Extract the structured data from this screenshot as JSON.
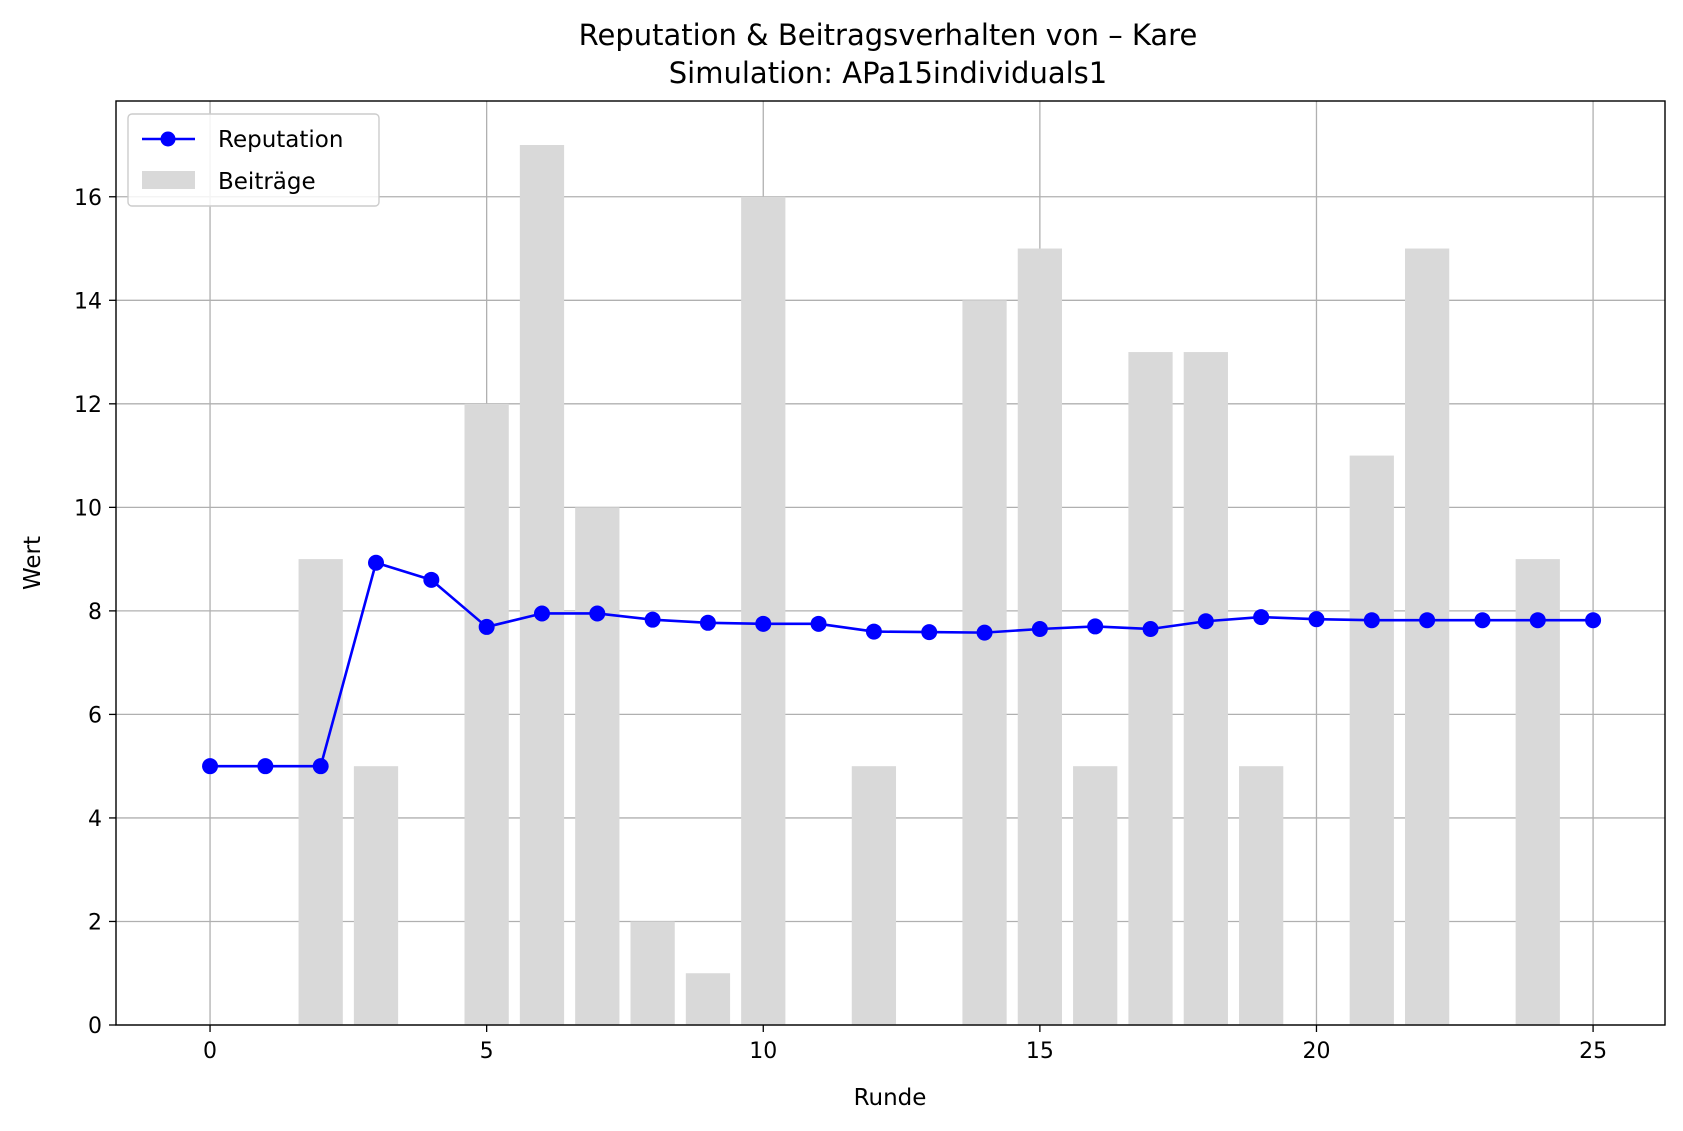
{
  "chart_data": {
    "type": "bar+line",
    "title": "Reputation & Beitragsverhalten von – Kare",
    "subtitle": "Simulation: APa15individuals1",
    "xlabel": "Runde",
    "ylabel": "Wert",
    "xlim": [
      -1.7,
      26.3
    ],
    "ylim": [
      0,
      17.85
    ],
    "xticks": [
      0,
      5,
      10,
      15,
      20,
      25
    ],
    "yticks": [
      0,
      2,
      4,
      6,
      8,
      10,
      12,
      14,
      16
    ],
    "grid": true,
    "legend_position": "top-left",
    "legend": [
      {
        "label": "Reputation",
        "kind": "line-marker",
        "color": "#0000ff"
      },
      {
        "label": "Beiträge",
        "kind": "bar",
        "color": "#d9d9d9"
      }
    ],
    "series": [
      {
        "name": "Beiträge",
        "type": "bar",
        "color": "#d9d9d9",
        "x": [
          0,
          1,
          2,
          3,
          4,
          5,
          6,
          7,
          8,
          9,
          10,
          11,
          12,
          13,
          14,
          15,
          16,
          17,
          18,
          19,
          20,
          21,
          22,
          23,
          24,
          25
        ],
        "values": [
          0,
          0,
          9,
          5,
          0,
          12,
          17,
          10,
          2,
          1,
          16,
          0,
          5,
          0,
          14,
          15,
          5,
          13,
          13,
          5,
          0,
          11,
          15,
          0,
          9,
          0
        ]
      },
      {
        "name": "Reputation",
        "type": "line",
        "color": "#0000ff",
        "x": [
          0,
          1,
          2,
          3,
          4,
          5,
          6,
          7,
          8,
          9,
          10,
          11,
          12,
          13,
          14,
          15,
          16,
          17,
          18,
          19,
          20,
          21,
          22,
          23,
          24,
          25
        ],
        "values": [
          5.0,
          5.0,
          5.0,
          8.93,
          8.6,
          7.69,
          7.95,
          7.95,
          7.83,
          7.77,
          7.75,
          7.75,
          7.6,
          7.59,
          7.58,
          7.65,
          7.7,
          7.65,
          7.8,
          7.88,
          7.84,
          7.82,
          7.82,
          7.82,
          7.82,
          7.82
        ]
      }
    ]
  }
}
